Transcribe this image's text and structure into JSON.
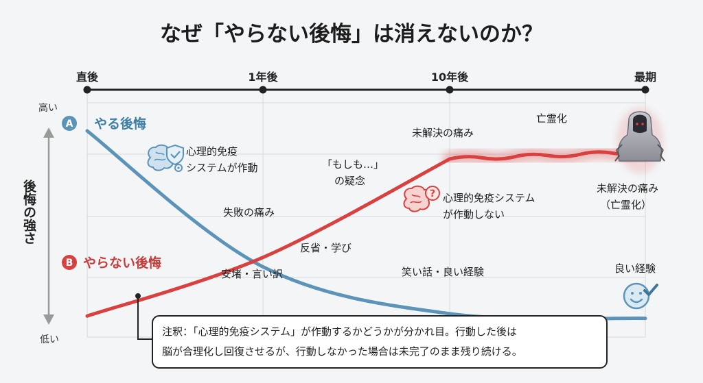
{
  "chart_data": {
    "type": "line",
    "title": "なぜ「やらない後悔」は消えないのか？",
    "x_ticks": [
      "直後",
      "1年後",
      "10年後",
      "最期"
    ],
    "ylabel": "後悔の強さ",
    "y_high_label": "高い",
    "y_low_label": "低い",
    "ylim": [
      0,
      10
    ],
    "x": [
      0,
      1,
      2,
      3
    ],
    "series": [
      {
        "badge": "A",
        "name": "やる後悔",
        "color": "#5b93b9",
        "values": [
          8.8,
          3.0,
          1.0,
          0.8
        ]
      },
      {
        "badge": "B",
        "name": "やらない後悔",
        "color": "#d8413f",
        "values": [
          0.9,
          3.4,
          7.6,
          7.9
        ]
      }
    ],
    "annotations": {
      "immune_on": [
        "心理的免疫",
        "システムが作動"
      ],
      "failure_pain": "失敗の痛み",
      "reflection": "反省・学び",
      "relief": "安堵・言い訳",
      "funny_story": "笑い話・良い経験",
      "good_experience": "良い経験",
      "what_if": [
        "「もしも…」",
        "の疑念"
      ],
      "immune_off": [
        "心理的免疫システム",
        "が作動しない"
      ],
      "unresolved_pain": "未解決の痛み",
      "ghost": "亡霊化",
      "unresolved_ghost": [
        "未解決の痛み",
        "（亡霊化）"
      ]
    },
    "note_lines": [
      "注釈：「心理的免疫システム」が作動するかどうかが分かれ目。行動した後は",
      "脳が合理化し回復させるが、行動しなかった場合は未完了のまま残り続ける。"
    ]
  }
}
